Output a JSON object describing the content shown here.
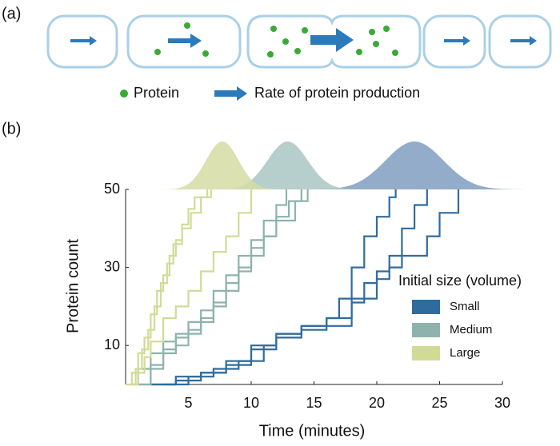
{
  "panel_a": {
    "label": "(a)",
    "legend": {
      "protein": "Protein",
      "rate": "Rate of protein production"
    }
  },
  "chart_data": {
    "type": "step",
    "panel_label": "(b)",
    "xlabel": "Time (minutes)",
    "ylabel": "Protein count",
    "xlim": [
      0,
      30
    ],
    "ylim": [
      0,
      50
    ],
    "xticks": [
      5,
      10,
      15,
      20,
      25,
      30
    ],
    "yticks": [
      10,
      30,
      50
    ],
    "legend_title": "Initial size (volume)",
    "legend": "right",
    "series": [
      {
        "name": "Small",
        "color": "#2f6c9d",
        "dist_color": "#7f9ec0",
        "arrival_mean": 23,
        "arrival_sd": 2.3,
        "trajectories": [
          {
            "x": [
              2,
              4,
              6,
              8,
              10,
              12,
              14,
              16,
              17,
              18,
              19,
              20,
              21,
              21.5
            ],
            "values": [
              0,
              2,
              3,
              6,
              10,
              13,
              15,
              17,
              22,
              30,
              38,
              43,
              48,
              50
            ]
          },
          {
            "x": [
              3,
              5,
              7,
              9,
              11,
              12,
              14,
              16,
              18,
              19,
              20,
              21,
              22,
              23,
              24
            ],
            "values": [
              0,
              2,
              4,
              6,
              10,
              12,
              14,
              15,
              21,
              26,
              29,
              33,
              40,
              46,
              50
            ]
          },
          {
            "x": [
              2,
              4,
              6,
              8,
              10,
              12,
              14,
              16,
              18,
              20,
              21,
              22,
              24,
              25,
              26.5
            ],
            "values": [
              0,
              1,
              3,
              5,
              9,
              13,
              15,
              17,
              22,
              27,
              30,
              33,
              38,
              44,
              50
            ]
          }
        ]
      },
      {
        "name": "Medium",
        "color": "#8db3ac",
        "dist_color": "#a9c6c3",
        "arrival_mean": 12.9,
        "arrival_sd": 1.6,
        "trajectories": [
          {
            "x": [
              0.5,
              1,
              2,
              3,
              4,
              5,
              6,
              7,
              8,
              9,
              10,
              11,
              12,
              12.8
            ],
            "values": [
              0,
              4,
              8,
              11,
              13,
              16,
              19,
              24,
              28,
              33,
              37,
              42,
              46,
              50
            ]
          },
          {
            "x": [
              1,
              2,
              3,
              4,
              5,
              6,
              7,
              8,
              9,
              10,
              11,
              12,
              13.5,
              14.5
            ],
            "values": [
              0,
              5,
              9,
              12,
              14,
              17,
              21,
              26,
              29,
              33,
              38,
              42,
              47,
              50
            ]
          },
          {
            "x": [
              1,
              2,
              3,
              4,
              5,
              6,
              7,
              8,
              9,
              10,
              11,
              12,
              13,
              14
            ],
            "values": [
              0,
              4,
              8,
              10,
              13,
              16,
              20,
              24,
              30,
              35,
              38,
              43,
              47,
              50
            ]
          }
        ]
      },
      {
        "name": "Large",
        "color": "#d2db96",
        "dist_color": "#d6dca4",
        "arrival_mean": 7.7,
        "arrival_sd": 1.3,
        "trajectories": [
          {
            "x": [
              0,
              0.5,
              1,
              1.5,
              2,
              2.5,
              3,
              3.5,
              4,
              4.5,
              5,
              5.5,
              6.5
            ],
            "values": [
              0,
              3,
              8,
              12,
              18,
              24,
              28,
              33,
              37,
              41,
              45,
              48,
              50
            ]
          },
          {
            "x": [
              0.3,
              0.8,
              1.3,
              1.8,
              2.3,
              2.8,
              3.3,
              3.8,
              4.5,
              5.2,
              6,
              6.8
            ],
            "values": [
              0,
              4,
              9,
              14,
              20,
              26,
              31,
              36,
              40,
              44,
              48,
              50
            ]
          },
          {
            "x": [
              0.5,
              1,
              1.5,
              2,
              3,
              4,
              5,
              6,
              7,
              8,
              9,
              10
            ],
            "values": [
              0,
              3,
              7,
              11,
              17,
              20,
              24,
              29,
              34,
              38,
              44,
              50
            ]
          }
        ]
      }
    ]
  }
}
